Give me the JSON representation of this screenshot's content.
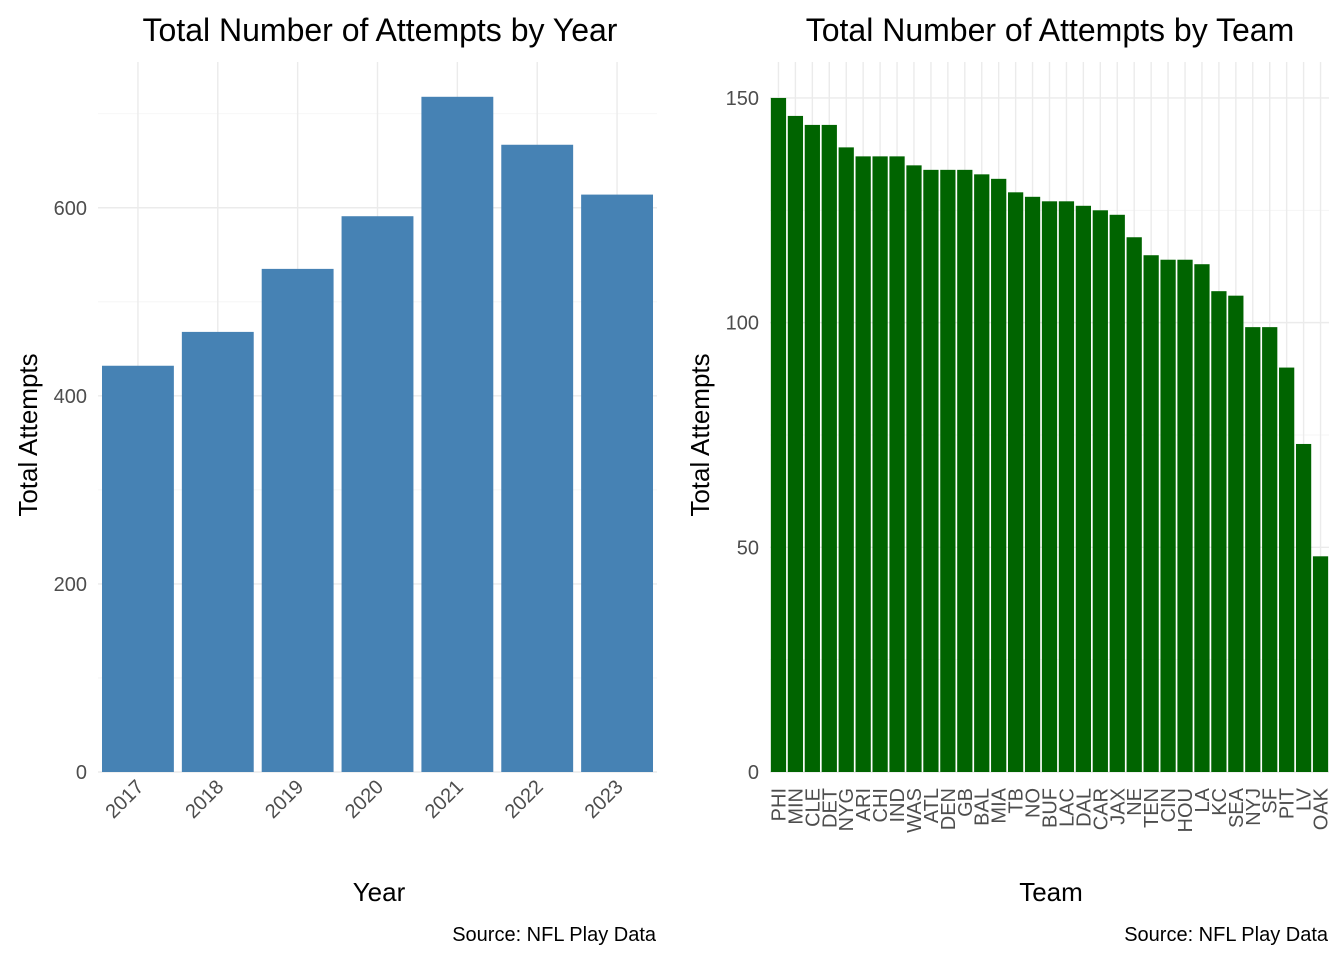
{
  "chart_data": [
    {
      "type": "bar",
      "title": "Total Number of Attempts by Year",
      "xlabel": "Year",
      "ylabel": "Total Attempts",
      "caption": "Source: NFL Play Data",
      "categories": [
        "2017",
        "2018",
        "2019",
        "2020",
        "2021",
        "2022",
        "2023"
      ],
      "values": [
        432,
        468,
        535,
        591,
        718,
        667,
        614
      ],
      "ylim": [
        0,
        755
      ],
      "yticks": [
        0,
        200,
        400,
        600
      ],
      "x_tick_rotation": 45,
      "grid": true,
      "bar_color": "#4682b4"
    },
    {
      "type": "bar",
      "title": "Total Number of Attempts by Team",
      "xlabel": "Team",
      "ylabel": "Total Attempts",
      "caption": "Source: NFL Play Data",
      "categories": [
        "PHI",
        "MIN",
        "CLE",
        "DET",
        "NYG",
        "ARI",
        "CHI",
        "IND",
        "WAS",
        "ATL",
        "DEN",
        "GB",
        "BAL",
        "MIA",
        "TB",
        "NO",
        "BUF",
        "LAC",
        "DAL",
        "CAR",
        "JAX",
        "NE",
        "TEN",
        "CIN",
        "HOU",
        "LA",
        "KC",
        "SEA",
        "NYJ",
        "SF",
        "PIT",
        "LV",
        "OAK"
      ],
      "values": [
        150,
        146,
        144,
        144,
        139,
        137,
        137,
        137,
        135,
        134,
        134,
        134,
        133,
        132,
        129,
        128,
        127,
        127,
        126,
        125,
        124,
        119,
        115,
        114,
        114,
        113,
        107,
        106,
        99,
        99,
        90,
        73,
        48
      ],
      "ylim": [
        0,
        158
      ],
      "yticks": [
        0,
        50,
        100,
        150
      ],
      "x_tick_rotation": 90,
      "grid": true,
      "bar_color": "#006400"
    }
  ]
}
